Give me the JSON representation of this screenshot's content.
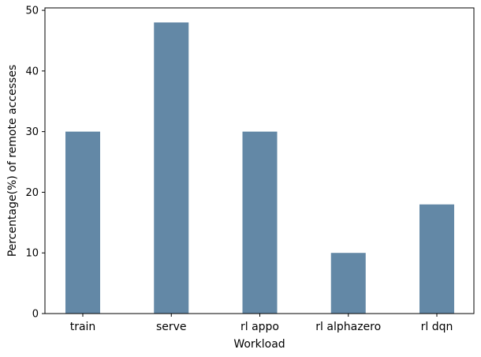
{
  "chart_data": {
    "type": "bar",
    "title": "",
    "xlabel": "Workload",
    "ylabel": "Percentage(%) of remote accesses",
    "categories": [
      "train",
      "serve",
      "rl appo",
      "rl alphazero",
      "rl dqn"
    ],
    "values": [
      30,
      48,
      30,
      10,
      18
    ],
    "ylim": [
      0,
      50.4
    ],
    "yticks": [
      0,
      10,
      20,
      30,
      40,
      50
    ],
    "grid": false,
    "legend": "none",
    "bar_color": "#6388a6"
  }
}
